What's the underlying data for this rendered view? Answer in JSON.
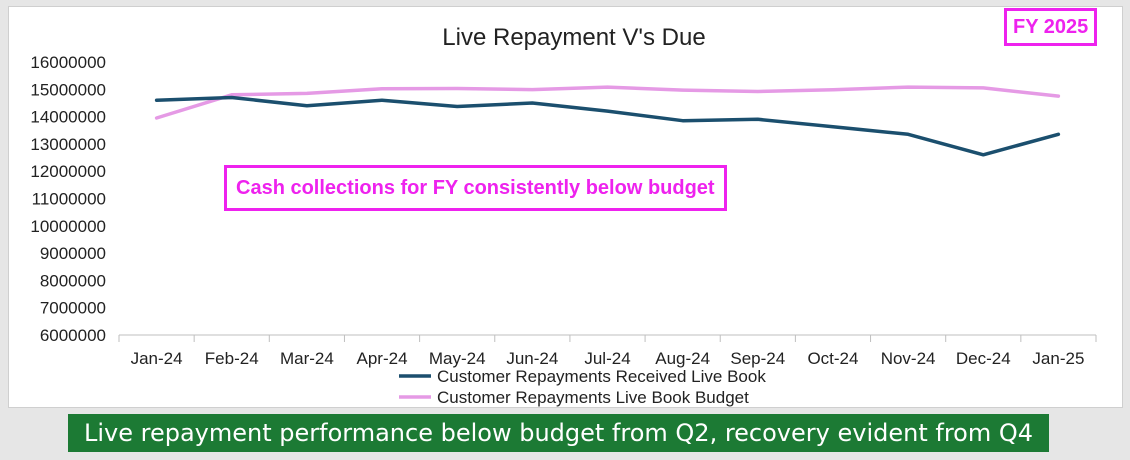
{
  "badge": {
    "text": "FY 2025"
  },
  "callout": {
    "text": "Cash collections for FY consistently below budget"
  },
  "footer": {
    "text": "Live repayment performance below budget from Q2, recovery evident from Q4"
  },
  "chart_data": {
    "type": "line",
    "title": "Live Repayment V's Due",
    "xlabel": "",
    "ylabel": "",
    "categories": [
      "Jan-24",
      "Feb-24",
      "Mar-24",
      "Apr-24",
      "May-24",
      "Jun-24",
      "Jul-24",
      "Aug-24",
      "Sep-24",
      "Oct-24",
      "Nov-24",
      "Dec-24",
      "Jan-25"
    ],
    "ylim": [
      6000000,
      16000000
    ],
    "yticks": [
      6000000,
      7000000,
      8000000,
      9000000,
      10000000,
      11000000,
      12000000,
      13000000,
      14000000,
      15000000,
      16000000
    ],
    "grid": false,
    "legend_position": "bottom",
    "series": [
      {
        "name": "Customer Repayments Received Live Book",
        "color": "#1b4f6e",
        "values": [
          14600000,
          14700000,
          14400000,
          14600000,
          14370000,
          14500000,
          14200000,
          13850000,
          13900000,
          13630000,
          13350000,
          12600000,
          13350000
        ]
      },
      {
        "name": "Customer Repayments Live Book Budget",
        "color": "#e59ae5",
        "values": [
          13950000,
          14800000,
          14850000,
          15020000,
          15030000,
          14990000,
          15080000,
          14970000,
          14920000,
          14980000,
          15080000,
          15050000,
          14750000
        ]
      }
    ]
  }
}
